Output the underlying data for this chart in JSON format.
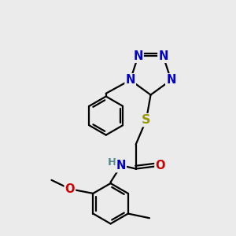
{
  "bg_color": "#ebebeb",
  "bond_color": "#000000",
  "bond_width": 1.6,
  "colors": {
    "N": "#0000cc",
    "O": "#cc0000",
    "S": "#999900",
    "H": "#558888",
    "C": "#000000"
  },
  "font_size": 10.5
}
